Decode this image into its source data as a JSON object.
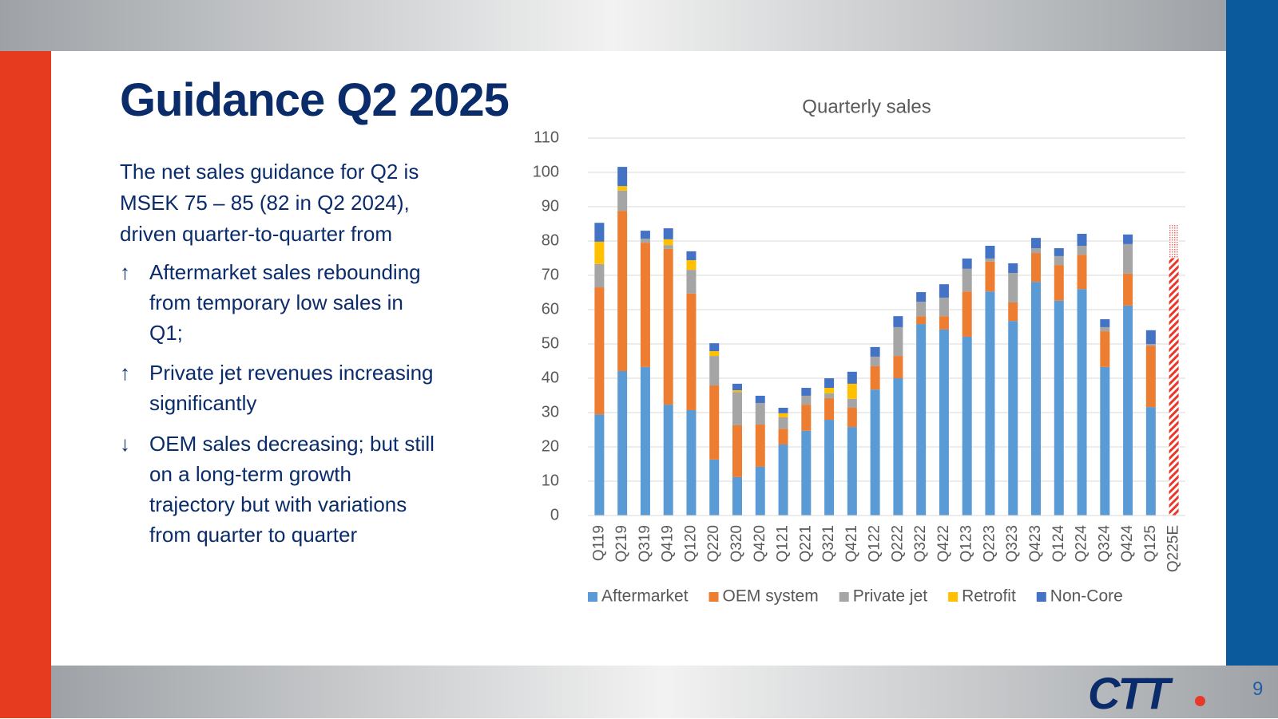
{
  "header": {
    "title": "Guidance Q2 2025"
  },
  "body": {
    "intro": "The net sales guidance for Q2 is MSEK 75 – 85 (82 in Q2 2024), driven quarter-to-quarter from",
    "bullets": [
      {
        "symbol": "↑",
        "text": "Aftermarket sales rebounding from temporary low sales in Q1;"
      },
      {
        "symbol": "↑",
        "text": "Private jet revenues increasing significantly"
      },
      {
        "symbol": "↓",
        "text": "OEM sales decreasing; but still on a long-term growth trajectory but with variations from quarter to quarter"
      }
    ]
  },
  "footer": {
    "logo": "CTT",
    "page_number": "9"
  },
  "chart_data": {
    "type": "bar",
    "stacked": true,
    "title": "Quarterly sales",
    "categories": [
      "Q119",
      "Q219",
      "Q319",
      "Q419",
      "Q120",
      "Q220",
      "Q320",
      "Q420",
      "Q121",
      "Q221",
      "Q321",
      "Q421",
      "Q122",
      "Q222",
      "Q322",
      "Q422",
      "Q123",
      "Q223",
      "Q323",
      "Q423",
      "Q124",
      "Q224",
      "Q324",
      "Q424",
      "Q125",
      "Q225E"
    ],
    "series": [
      {
        "name": "Aftermarket",
        "color": "#5b9bd5",
        "values": [
          29.5,
          42.1,
          43.3,
          32.3,
          30.7,
          16.3,
          11.2,
          14.2,
          20.7,
          24.7,
          27.9,
          25.8,
          36.7,
          40.0,
          55.8,
          54.2,
          52.1,
          65.3,
          56.7,
          68.1,
          62.6,
          66.0,
          43.3,
          61.2,
          31.6,
          null
        ]
      },
      {
        "name": "OEM system",
        "color": "#ed7d31",
        "values": [
          37.0,
          46.7,
          36.2,
          45.4,
          34.0,
          21.6,
          15.1,
          12.3,
          4.6,
          7.6,
          6.3,
          5.6,
          6.8,
          6.5,
          2.3,
          3.9,
          13.2,
          8.7,
          5.4,
          8.4,
          10.4,
          10.0,
          10.4,
          9.3,
          17.9,
          null
        ]
      },
      {
        "name": "Private jet",
        "color": "#a5a5a5",
        "values": [
          6.8,
          5.9,
          1.2,
          1.1,
          6.9,
          8.6,
          9.7,
          6.3,
          3.3,
          2.6,
          1.4,
          2.6,
          2.8,
          8.4,
          4.2,
          5.4,
          6.6,
          0.9,
          8.6,
          1.4,
          2.6,
          2.6,
          1.2,
          8.6,
          0.5,
          null
        ]
      },
      {
        "name": "Retrofit",
        "color": "#ffc000",
        "values": [
          6.5,
          1.3,
          0,
          1.7,
          2.8,
          1.4,
          0.5,
          0,
          1.2,
          0,
          1.6,
          4.4,
          0,
          0,
          0,
          0,
          0,
          0,
          0,
          0,
          0,
          0,
          0,
          0,
          0,
          null
        ]
      },
      {
        "name": "Non-Core",
        "color": "#4472c4",
        "values": [
          5.5,
          5.6,
          2.3,
          3.2,
          2.6,
          2.3,
          1.9,
          2.1,
          1.6,
          2.3,
          2.8,
          3.5,
          2.8,
          3.2,
          2.8,
          3.9,
          3.0,
          3.7,
          2.8,
          3.0,
          2.3,
          3.5,
          2.3,
          2.8,
          4.0,
          null
        ]
      }
    ],
    "guidance": {
      "low": 75,
      "high": 85,
      "color": "#e8382a"
    },
    "ylim": [
      0,
      110
    ],
    "yticks": [
      0,
      10,
      20,
      30,
      40,
      50,
      60,
      70,
      80,
      90,
      100,
      110
    ],
    "grid": true,
    "legend": "bottom"
  }
}
